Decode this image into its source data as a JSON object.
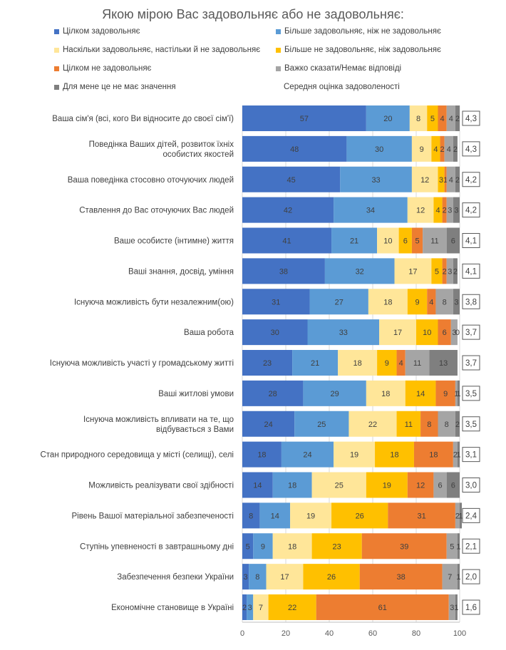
{
  "chart_data": {
    "type": "bar",
    "orientation": "horizontal",
    "stacked": true,
    "title": "Якою мірою Вас задовольняє або не  задовольняє:",
    "xlim": [
      0,
      100
    ],
    "xticks": [
      0,
      20,
      40,
      60,
      80,
      100
    ],
    "grid": true,
    "legend_position": "top",
    "categories": [
      "Ваша сім'я (всі, кого Ви відносите до своєї сім'ї)",
      "Поведінка  Ваших дітей, розвиток їхніх особистих якостей",
      "Ваша поведінка стосовно оточуючих людей",
      "Ставлення до Вас оточуючих Вас людей",
      "Ваше особисте (інтимне) життя",
      "Ваші знання, досвід, уміння",
      "Існуюча можливість бути незалежним(ою)",
      "Ваша робота",
      "Існуюча можливість участі у громадському житті",
      "Ваші житлові умови",
      "Існуюча можливість впливати на те, що відбувається з Вами",
      "Стан природного середовища  у місті (селищі), селі",
      "Можливість реалізувати свої здібності",
      "Рівень Вашої матеріальної забезпеченості",
      "Ступінь упевненості в завтрашньому дні",
      "Забезпечення  безпеки України",
      "Економічне становище в Україні"
    ],
    "series": [
      {
        "name": "Цілком задовольняє",
        "color": "#4472C4",
        "values": [
          57,
          48,
          45,
          42,
          41,
          38,
          31,
          30,
          23,
          28,
          24,
          18,
          14,
          8,
          5,
          3,
          2
        ]
      },
      {
        "name": "Більше задовольняє, ніж не задовольняє",
        "color": "#5B9BD5",
        "values": [
          20,
          30,
          33,
          34,
          21,
          32,
          27,
          33,
          21,
          29,
          25,
          24,
          18,
          14,
          9,
          8,
          3
        ]
      },
      {
        "name": "Наскільки задовольняє, настільки й не задовольняє",
        "color": "#FFE699",
        "values": [
          8,
          9,
          12,
          12,
          10,
          17,
          18,
          17,
          18,
          18,
          22,
          19,
          25,
          19,
          18,
          17,
          7
        ]
      },
      {
        "name": "Більше не задовольняє, ніж задовольняє",
        "color": "#FFC000",
        "values": [
          5,
          4,
          3,
          4,
          6,
          5,
          9,
          10,
          9,
          14,
          11,
          18,
          19,
          26,
          23,
          26,
          22
        ]
      },
      {
        "name": "Цілком не задовольняє",
        "color": "#ED7D31",
        "values": [
          4,
          2,
          1,
          2,
          5,
          2,
          4,
          6,
          4,
          9,
          8,
          18,
          12,
          31,
          39,
          38,
          61
        ]
      },
      {
        "name": "Важко сказати/Немає відповіді",
        "color": "#A5A5A5",
        "values": [
          4,
          4,
          4,
          3,
          11,
          3,
          8,
          3,
          11,
          1,
          8,
          2,
          6,
          2,
          5,
          7,
          3
        ]
      },
      {
        "name": "Для мене це не має значення",
        "color": "#7F7F7F",
        "values": [
          2,
          2,
          2,
          3,
          6,
          2,
          3,
          0,
          13,
          1,
          2,
          1,
          6,
          1,
          1,
          1,
          1
        ]
      }
    ],
    "average_label": "Середня оцінка задоволеності",
    "average_values": [
      "4,3",
      "4,3",
      "4,2",
      "4,2",
      "4,1",
      "4,1",
      "3,8",
      "3,7",
      "3,7",
      "3,5",
      "3,5",
      "3,1",
      "3,0",
      "2,4",
      "2,1",
      "2,0",
      "1,6"
    ]
  }
}
